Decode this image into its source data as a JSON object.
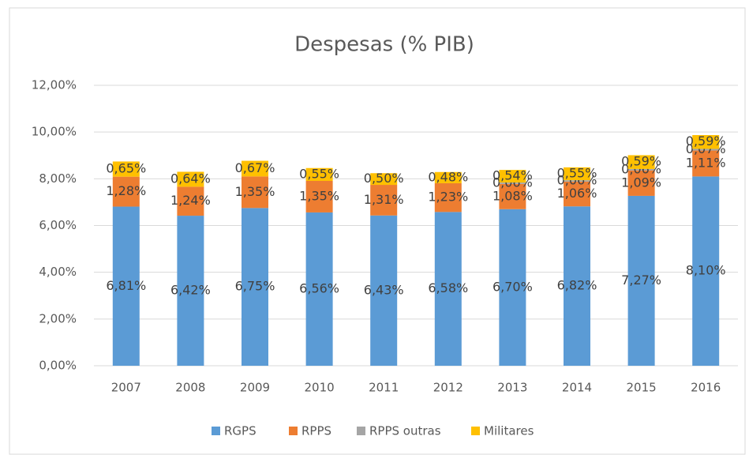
{
  "chart_data": {
    "type": "stacked_bar",
    "title": "Despesas (% PIB)",
    "categories": [
      "2007",
      "2008",
      "2009",
      "2010",
      "2011",
      "2012",
      "2013",
      "2014",
      "2015",
      "2016"
    ],
    "series": [
      {
        "name": "RGPS",
        "color": "#5b9bd5",
        "values": [
          6.81,
          6.42,
          6.75,
          6.56,
          6.43,
          6.58,
          6.7,
          6.82,
          7.27,
          8.1
        ],
        "value_labels": [
          "6,81%",
          "6,42%",
          "6,75%",
          "6,56%",
          "6,43%",
          "6,58%",
          "6,70%",
          "6,82%",
          "7,27%",
          "8,10%"
        ]
      },
      {
        "name": "RPPS",
        "color": "#ed7d31",
        "values": [
          1.28,
          1.24,
          1.35,
          1.35,
          1.31,
          1.23,
          1.08,
          1.06,
          1.09,
          1.11
        ],
        "value_labels": [
          "1,28%",
          "1,24%",
          "1,35%",
          "1,35%",
          "1,31%",
          "1,23%",
          "1,08%",
          "1,06%",
          "1,09%",
          "1,11%"
        ]
      },
      {
        "name": "RPPS outras",
        "color": "#a5a5a5",
        "values": [
          null,
          null,
          null,
          null,
          null,
          null,
          0.06,
          0.06,
          0.06,
          0.07
        ],
        "value_labels": [
          null,
          null,
          null,
          null,
          null,
          null,
          "0,06%",
          "0,06%",
          "0,06%",
          "0,07%"
        ]
      },
      {
        "name": "Militares",
        "color": "#ffc000",
        "values": [
          0.65,
          0.64,
          0.67,
          0.55,
          0.5,
          0.48,
          0.54,
          0.55,
          0.59,
          0.59
        ],
        "value_labels": [
          "0,65%",
          "0,64%",
          "0,67%",
          "0,55%",
          "0,50%",
          "0,48%",
          "0,54%",
          "0,55%",
          "0,59%",
          "0,59%"
        ]
      }
    ],
    "ylim": [
      0,
      12
    ],
    "yticks": [
      {
        "value": 0,
        "label": "0,00%"
      },
      {
        "value": 2,
        "label": "2,00%"
      },
      {
        "value": 4,
        "label": "4,00%"
      },
      {
        "value": 6,
        "label": "6,00%"
      },
      {
        "value": 8,
        "label": "8,00%"
      },
      {
        "value": 10,
        "label": "10,00%"
      },
      {
        "value": 12,
        "label": "12,00%"
      }
    ],
    "grid": true,
    "legend": "bottom"
  }
}
